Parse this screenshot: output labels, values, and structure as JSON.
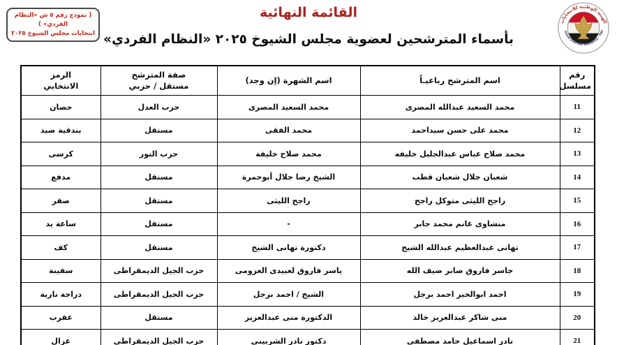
{
  "stamp_box": {
    "line1": "( نموذج رقم ٥ ش «النظام الفردي» )",
    "line2": "انتخابات مجلس الشيوخ ٢٠٢٥"
  },
  "title": "القائمة النهائية",
  "subtitle": "بأسماء المترشحين لعضوية مجلس الشيوخ ٢٠٢٥ «النظام الفردي»",
  "logo": {
    "arc_text_ar": "الهيئة الوطنية للانتخابات",
    "arc_text_en": "National Election Authority - Egypt"
  },
  "colors": {
    "title_red": "#a9231d",
    "stamp_red": "#c9231c",
    "flag_red": "#ce1126",
    "flag_black": "#1a1a1a",
    "eagle_gold": "#c8a24b",
    "text_black": "#0d0d0d"
  },
  "table": {
    "headers": [
      {
        "key": "serial",
        "label": "رقم\nمسلسل"
      },
      {
        "key": "name",
        "label": "اسم المترشح رباعيـاً"
      },
      {
        "key": "alias",
        "label": "اسم الشهرة (إن وجد)"
      },
      {
        "key": "affiliation",
        "label": "صفة المترشح\nمستقل / حزبي"
      },
      {
        "key": "symbol",
        "label": "الرمز\nالانتخابي"
      }
    ],
    "rows": [
      {
        "serial": "11",
        "name": "محمد السعيد عبدالله المصرى",
        "alias": "محمد السعيد المصرى",
        "affiliation": "حزب العدل",
        "symbol": "حصان"
      },
      {
        "serial": "12",
        "name": "محمد على حسن سيداحمد",
        "alias": "محمد الفقى",
        "affiliation": "مستقل",
        "symbol": "بندقية صيد"
      },
      {
        "serial": "13",
        "name": "محمد صلاح عباس عبدالجليل خليفه",
        "alias": "محمد صلاح خليفة",
        "affiliation": "حزب النور",
        "symbol": "كرسى"
      },
      {
        "serial": "14",
        "name": "شعبان جلال شعبان قطب",
        "alias": "الشيخ رضا جلال أبوحمرة",
        "affiliation": "مستقل",
        "symbol": "مدفع"
      },
      {
        "serial": "15",
        "name": "راجح الليثى متوكل راجح",
        "alias": "راجح الليثى",
        "affiliation": "مستقل",
        "symbol": "صقر"
      },
      {
        "serial": "16",
        "name": "منشاوى غانم محمد جابر",
        "alias": "-",
        "affiliation": "مستقل",
        "symbol": "ساعة يد"
      },
      {
        "serial": "17",
        "name": "تهانى عبدالعظيم عبدالله الشيخ",
        "alias": "دكتورة تهانى الشيخ",
        "affiliation": "مستقل",
        "symbol": "كف"
      },
      {
        "serial": "18",
        "name": "جاسر فاروق صابر ضيف الله",
        "alias": "ياسر فاروق لعبيدى العزومى",
        "affiliation": "حزب الجيل الديمقراطى",
        "symbol": "سفينة"
      },
      {
        "serial": "19",
        "name": "احمد ابوالخير احمد برجل",
        "alias": "الشيخ / احمد برجل",
        "affiliation": "حزب الجيل الديمقراطى",
        "symbol": "دراجة نارية"
      },
      {
        "serial": "20",
        "name": "منى شاكر عبدالعزيز خالد",
        "alias": "الدكتورة منى عبدالعزيز",
        "affiliation": "مستقل",
        "symbol": "عقرب"
      },
      {
        "serial": "21",
        "name": "نادر اسماعيل حامد مصطفى",
        "alias": "دكتور نادر الشربينى",
        "affiliation": "حزب الجيل الديمقراطى",
        "symbol": "غزال"
      }
    ]
  }
}
